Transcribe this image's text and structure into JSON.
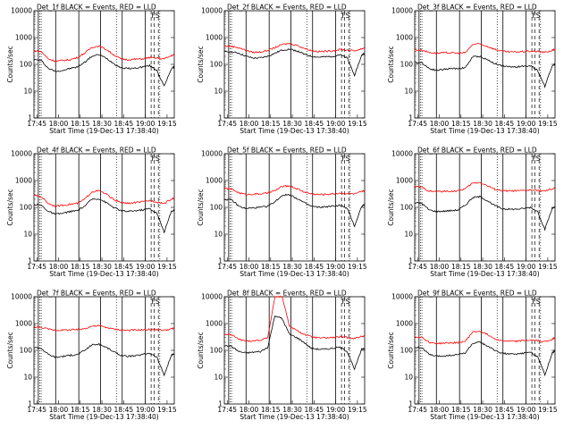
{
  "figure": {
    "ylabel": "Counts/sec",
    "xlabel": "Start Time (19-Dec-13 17:38:40)",
    "series_colors": {
      "events": "#000000",
      "lld": "#ff0000"
    },
    "background": "#ffffff"
  },
  "chart_data": [
    {
      "type": "line",
      "title": "Det_1f BLACK = Events, RED = LLD",
      "ylabel": "Counts/sec",
      "xlabel": "Start Time (19-Dec-13 17:38:40)",
      "xticks": [
        "17:45",
        "18:00",
        "18:15",
        "18:30",
        "18:45",
        "19:00",
        "19:15"
      ],
      "yticks": [
        "1",
        "10",
        "100",
        "1000",
        "10000"
      ],
      "xlim_min": [
        5,
        102
      ],
      "ylim": [
        1,
        10000
      ],
      "yscale": "log",
      "flag_label": "FS",
      "series": [
        {
          "name": "Events",
          "x": [
            5,
            10,
            15,
            20,
            25,
            30,
            35,
            40,
            45,
            50,
            55,
            60,
            65,
            70,
            75,
            80,
            85,
            90,
            95,
            100,
            102
          ],
          "values": [
            150,
            140,
            70,
            55,
            60,
            70,
            80,
            120,
            200,
            230,
            170,
            110,
            75,
            70,
            72,
            80,
            90,
            60,
            15,
            70,
            80
          ]
        },
        {
          "name": "LLD",
          "x": [
            5,
            10,
            15,
            20,
            25,
            30,
            35,
            40,
            45,
            50,
            55,
            60,
            65,
            70,
            75,
            80,
            85,
            90,
            95,
            100,
            102
          ],
          "values": [
            320,
            300,
            160,
            130,
            140,
            150,
            180,
            260,
            430,
            480,
            360,
            230,
            160,
            150,
            155,
            160,
            180,
            170,
            160,
            210,
            230
          ]
        }
      ]
    },
    {
      "type": "line",
      "title": "Det_2f BLACK = Events, RED = LLD",
      "ylabel": "Counts/sec",
      "xlabel": "Start Time (19-Dec-13 17:38:40)",
      "xticks": [
        "17:45",
        "18:00",
        "18:15",
        "18:30",
        "18:45",
        "19:00",
        "19:15"
      ],
      "yticks": [
        "1",
        "10",
        "100",
        "1000",
        "10000"
      ],
      "xlim_min": [
        5,
        102
      ],
      "ylim": [
        1,
        10000
      ],
      "yscale": "log",
      "flag_label": "FS",
      "series": [
        {
          "name": "Events",
          "x": [
            5,
            10,
            15,
            20,
            25,
            30,
            35,
            40,
            45,
            50,
            55,
            60,
            65,
            70,
            75,
            80,
            85,
            90,
            95,
            100,
            102
          ],
          "values": [
            300,
            290,
            260,
            200,
            170,
            175,
            200,
            260,
            340,
            370,
            320,
            240,
            200,
            185,
            190,
            200,
            230,
            170,
            40,
            220,
            260
          ]
        },
        {
          "name": "LLD",
          "x": [
            5,
            10,
            15,
            20,
            25,
            30,
            35,
            40,
            45,
            50,
            55,
            60,
            65,
            70,
            75,
            80,
            85,
            90,
            95,
            100,
            102
          ],
          "values": [
            480,
            470,
            420,
            330,
            280,
            290,
            330,
            420,
            550,
            600,
            520,
            400,
            330,
            300,
            305,
            320,
            360,
            340,
            320,
            380,
            420
          ]
        }
      ]
    },
    {
      "type": "line",
      "title": "Det_3f BLACK = Events, RED = LLD",
      "ylabel": "Counts/sec",
      "xlabel": "Start Time (19-Dec-13 17:38:40)",
      "xticks": [
        "17:45",
        "18:00",
        "18:15",
        "18:30",
        "18:45",
        "19:00",
        "19:15"
      ],
      "yticks": [
        "1",
        "10",
        "100",
        "1000",
        "10000"
      ],
      "xlim_min": [
        5,
        102
      ],
      "ylim": [
        1,
        10000
      ],
      "yscale": "log",
      "flag_label": "FS",
      "series": [
        {
          "name": "Events",
          "x": [
            5,
            10,
            15,
            20,
            25,
            30,
            35,
            40,
            45,
            50,
            55,
            60,
            65,
            70,
            75,
            80,
            85,
            90,
            95,
            100,
            102
          ],
          "values": [
            120,
            115,
            70,
            60,
            65,
            70,
            70,
            75,
            190,
            200,
            150,
            110,
            90,
            80,
            80,
            85,
            90,
            60,
            15,
            90,
            100
          ]
        },
        {
          "name": "LLD",
          "x": [
            5,
            10,
            15,
            20,
            25,
            30,
            35,
            40,
            45,
            50,
            55,
            60,
            65,
            70,
            75,
            80,
            85,
            90,
            95,
            100,
            102
          ],
          "values": [
            350,
            340,
            280,
            260,
            270,
            270,
            260,
            270,
            550,
            580,
            470,
            370,
            310,
            290,
            290,
            300,
            310,
            300,
            280,
            330,
            370
          ]
        }
      ]
    },
    {
      "type": "line",
      "title": "Det_4f BLACK = Events, RED = LLD",
      "ylabel": "Counts/sec",
      "xlabel": "Start Time (19-Dec-13 17:38:40)",
      "xticks": [
        "17:45",
        "18:00",
        "18:15",
        "18:30",
        "18:45",
        "19:00",
        "19:15"
      ],
      "yticks": [
        "1",
        "10",
        "100",
        "1000",
        "10000"
      ],
      "xlim_min": [
        5,
        102
      ],
      "ylim": [
        1,
        10000
      ],
      "yscale": "log",
      "flag_label": "FS",
      "series": [
        {
          "name": "Events",
          "x": [
            5,
            10,
            15,
            20,
            25,
            30,
            35,
            40,
            45,
            50,
            55,
            60,
            65,
            70,
            75,
            80,
            85,
            90,
            95,
            100,
            102
          ],
          "values": [
            130,
            120,
            70,
            55,
            60,
            70,
            75,
            110,
            200,
            210,
            150,
            100,
            75,
            70,
            75,
            80,
            90,
            60,
            12,
            70,
            80
          ]
        },
        {
          "name": "LLD",
          "x": [
            5,
            10,
            15,
            20,
            25,
            30,
            35,
            40,
            45,
            50,
            55,
            60,
            65,
            70,
            75,
            80,
            85,
            90,
            95,
            100,
            102
          ],
          "values": [
            280,
            250,
            140,
            110,
            120,
            130,
            140,
            200,
            380,
            420,
            310,
            200,
            150,
            140,
            150,
            160,
            180,
            160,
            140,
            200,
            230
          ]
        }
      ]
    },
    {
      "type": "line",
      "title": "Det_5f BLACK = Events, RED = LLD",
      "ylabel": "Counts/sec",
      "xlabel": "Start Time (19-Dec-13 17:38:40)",
      "xticks": [
        "17:45",
        "18:00",
        "18:15",
        "18:30",
        "18:45",
        "19:00",
        "19:15"
      ],
      "yticks": [
        "1",
        "10",
        "100",
        "1000",
        "10000"
      ],
      "xlim_min": [
        5,
        102
      ],
      "ylim": [
        1,
        10000
      ],
      "yscale": "log",
      "flag_label": "FS",
      "series": [
        {
          "name": "Events",
          "x": [
            5,
            10,
            15,
            20,
            25,
            30,
            35,
            40,
            45,
            50,
            55,
            60,
            65,
            70,
            75,
            80,
            85,
            90,
            95,
            100,
            102
          ],
          "values": [
            200,
            190,
            110,
            90,
            95,
            100,
            110,
            160,
            280,
            300,
            220,
            150,
            110,
            100,
            105,
            110,
            120,
            90,
            20,
            110,
            130
          ]
        },
        {
          "name": "LLD",
          "x": [
            5,
            10,
            15,
            20,
            25,
            30,
            35,
            40,
            45,
            50,
            55,
            60,
            65,
            70,
            75,
            80,
            85,
            90,
            95,
            100,
            102
          ],
          "values": [
            500,
            480,
            350,
            300,
            310,
            320,
            340,
            420,
            600,
            630,
            500,
            380,
            320,
            300,
            305,
            320,
            340,
            330,
            320,
            380,
            420
          ]
        }
      ]
    },
    {
      "type": "line",
      "title": "Det_6f BLACK = Events, RED = LLD",
      "ylabel": "Counts/sec",
      "xlabel": "Start Time (19-Dec-13 17:38:40)",
      "xticks": [
        "17:45",
        "18:00",
        "18:15",
        "18:30",
        "18:45",
        "19:00",
        "19:15"
      ],
      "yticks": [
        "1",
        "10",
        "100",
        "1000",
        "10000"
      ],
      "xlim_min": [
        5,
        102
      ],
      "ylim": [
        1,
        10000
      ],
      "yscale": "log",
      "flag_label": "FS",
      "series": [
        {
          "name": "Events",
          "x": [
            5,
            10,
            15,
            20,
            25,
            30,
            35,
            40,
            45,
            50,
            55,
            60,
            65,
            70,
            75,
            80,
            85,
            90,
            95,
            100,
            102
          ],
          "values": [
            150,
            140,
            80,
            70,
            72,
            75,
            80,
            120,
            230,
            250,
            180,
            120,
            90,
            85,
            85,
            90,
            100,
            70,
            15,
            90,
            110
          ]
        },
        {
          "name": "LLD",
          "x": [
            5,
            10,
            15,
            20,
            25,
            30,
            35,
            40,
            45,
            50,
            55,
            60,
            65,
            70,
            75,
            80,
            85,
            90,
            95,
            100,
            102
          ],
          "values": [
            600,
            560,
            400,
            390,
            395,
            400,
            410,
            500,
            800,
            850,
            650,
            480,
            420,
            410,
            410,
            420,
            440,
            430,
            400,
            480,
            520
          ]
        }
      ]
    },
    {
      "type": "line",
      "title": "Det_7f BLACK = Events, RED = LLD",
      "ylabel": "Counts/sec",
      "xlabel": "Start Time (19-Dec-13 17:38:40)",
      "xticks": [
        "17:45",
        "18:00",
        "18:15",
        "18:30",
        "18:45",
        "19:00",
        "19:15"
      ],
      "yticks": [
        "1",
        "10",
        "100",
        "1000",
        "10000"
      ],
      "xlim_min": [
        5,
        102
      ],
      "ylim": [
        1,
        10000
      ],
      "yscale": "log",
      "flag_label": "FS",
      "series": [
        {
          "name": "Events",
          "x": [
            5,
            10,
            15,
            20,
            25,
            30,
            35,
            40,
            45,
            50,
            55,
            60,
            65,
            70,
            75,
            80,
            85,
            90,
            95,
            100,
            102
          ],
          "values": [
            130,
            120,
            70,
            55,
            60,
            65,
            70,
            100,
            160,
            170,
            130,
            90,
            65,
            60,
            62,
            70,
            80,
            55,
            12,
            65,
            75
          ]
        },
        {
          "name": "LLD",
          "x": [
            5,
            10,
            15,
            20,
            25,
            30,
            35,
            40,
            45,
            50,
            55,
            60,
            65,
            70,
            75,
            80,
            85,
            90,
            95,
            100,
            102
          ],
          "values": [
            750,
            720,
            620,
            560,
            570,
            580,
            590,
            650,
            800,
            830,
            720,
            620,
            580,
            560,
            570,
            580,
            600,
            590,
            560,
            630,
            660
          ]
        }
      ]
    },
    {
      "type": "line",
      "title": "Det_8f BLACK = Events, RED = LLD",
      "ylabel": "Counts/sec",
      "xlabel": "Start Time (19-Dec-13 17:38:40)",
      "xticks": [
        "17:45",
        "18:00",
        "18:15",
        "18:30",
        "18:45",
        "19:00",
        "19:15"
      ],
      "yticks": [
        "1",
        "10",
        "100",
        "1000",
        "10000"
      ],
      "xlim_min": [
        5,
        102
      ],
      "ylim": [
        1,
        10000
      ],
      "yscale": "log",
      "flag_label": "FS",
      "series": [
        {
          "name": "Events",
          "x": [
            5,
            10,
            15,
            20,
            25,
            30,
            35,
            40,
            45,
            50,
            55,
            60,
            65,
            70,
            75,
            80,
            85,
            90,
            95,
            100,
            102
          ],
          "values": [
            150,
            140,
            90,
            80,
            85,
            90,
            130,
            2000,
            1500,
            400,
            300,
            200,
            120,
            110,
            110,
            120,
            130,
            90,
            20,
            110,
            120
          ]
        },
        {
          "name": "LLD",
          "x": [
            5,
            10,
            15,
            20,
            25,
            30,
            35,
            40,
            45,
            50,
            55,
            60,
            65,
            70,
            75,
            80,
            85,
            90,
            95,
            100,
            102
          ],
          "values": [
            400,
            380,
            260,
            220,
            230,
            240,
            300,
            10000,
            10000,
            800,
            550,
            400,
            320,
            290,
            290,
            300,
            320,
            300,
            280,
            330,
            350
          ]
        }
      ]
    },
    {
      "type": "line",
      "title": "Det_9f BLACK = Events, RED = LLD",
      "ylabel": "Counts/sec",
      "xlabel": "Start Time (19-Dec-13 17:38:40)",
      "xticks": [
        "17:45",
        "18:00",
        "18:15",
        "18:30",
        "18:45",
        "19:00",
        "19:15"
      ],
      "yticks": [
        "1",
        "10",
        "100",
        "1000",
        "10000"
      ],
      "xlim_min": [
        5,
        102
      ],
      "ylim": [
        1,
        10000
      ],
      "yscale": "log",
      "flag_label": "FS",
      "series": [
        {
          "name": "Events",
          "x": [
            5,
            10,
            15,
            20,
            25,
            30,
            35,
            40,
            45,
            50,
            55,
            60,
            65,
            70,
            75,
            80,
            85,
            90,
            95,
            100,
            102
          ],
          "values": [
            130,
            125,
            70,
            60,
            62,
            65,
            70,
            80,
            180,
            200,
            150,
            100,
            80,
            72,
            72,
            78,
            85,
            60,
            12,
            80,
            95
          ]
        },
        {
          "name": "LLD",
          "x": [
            5,
            10,
            15,
            20,
            25,
            30,
            35,
            40,
            45,
            50,
            55,
            60,
            65,
            70,
            75,
            80,
            85,
            90,
            95,
            100,
            102
          ],
          "values": [
            320,
            310,
            200,
            180,
            185,
            190,
            195,
            220,
            480,
            520,
            400,
            280,
            230,
            220,
            220,
            230,
            240,
            230,
            210,
            260,
            300
          ]
        }
      ]
    }
  ]
}
